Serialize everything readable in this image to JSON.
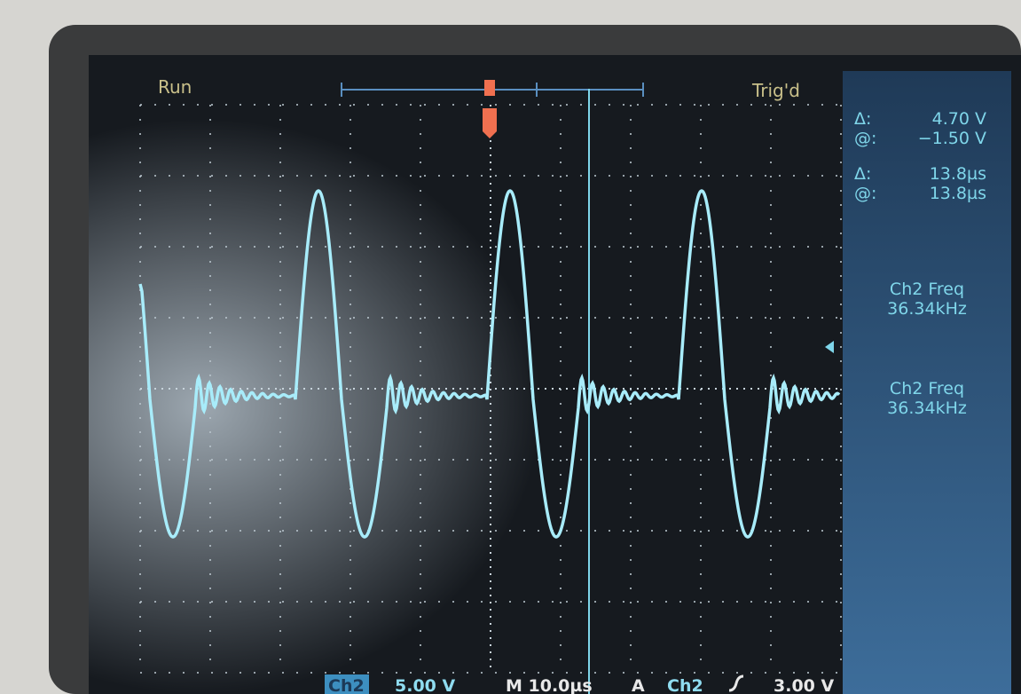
{
  "status": "Run",
  "trigger_status": "Trig'd",
  "readouts": [
    {
      "label": "Δ:",
      "value": "4.70 V"
    },
    {
      "label": "@:",
      "value": "−1.50 V"
    },
    {
      "label": "Δ:",
      "value": "13.8µs"
    },
    {
      "label": "@:",
      "value": "13.8µs"
    }
  ],
  "measurements": [
    {
      "name": "Ch2 Freq",
      "value": "36.34kHz"
    },
    {
      "name": "Ch2 Freq",
      "value": "36.34kHz"
    }
  ],
  "bottom_bar": {
    "channel": "Ch2",
    "scale": "5.00 V",
    "timebase": "M 10.0µs",
    "trigger_mode": "A",
    "trigger_source": "Ch2",
    "trigger_level": "3.00 V"
  }
}
